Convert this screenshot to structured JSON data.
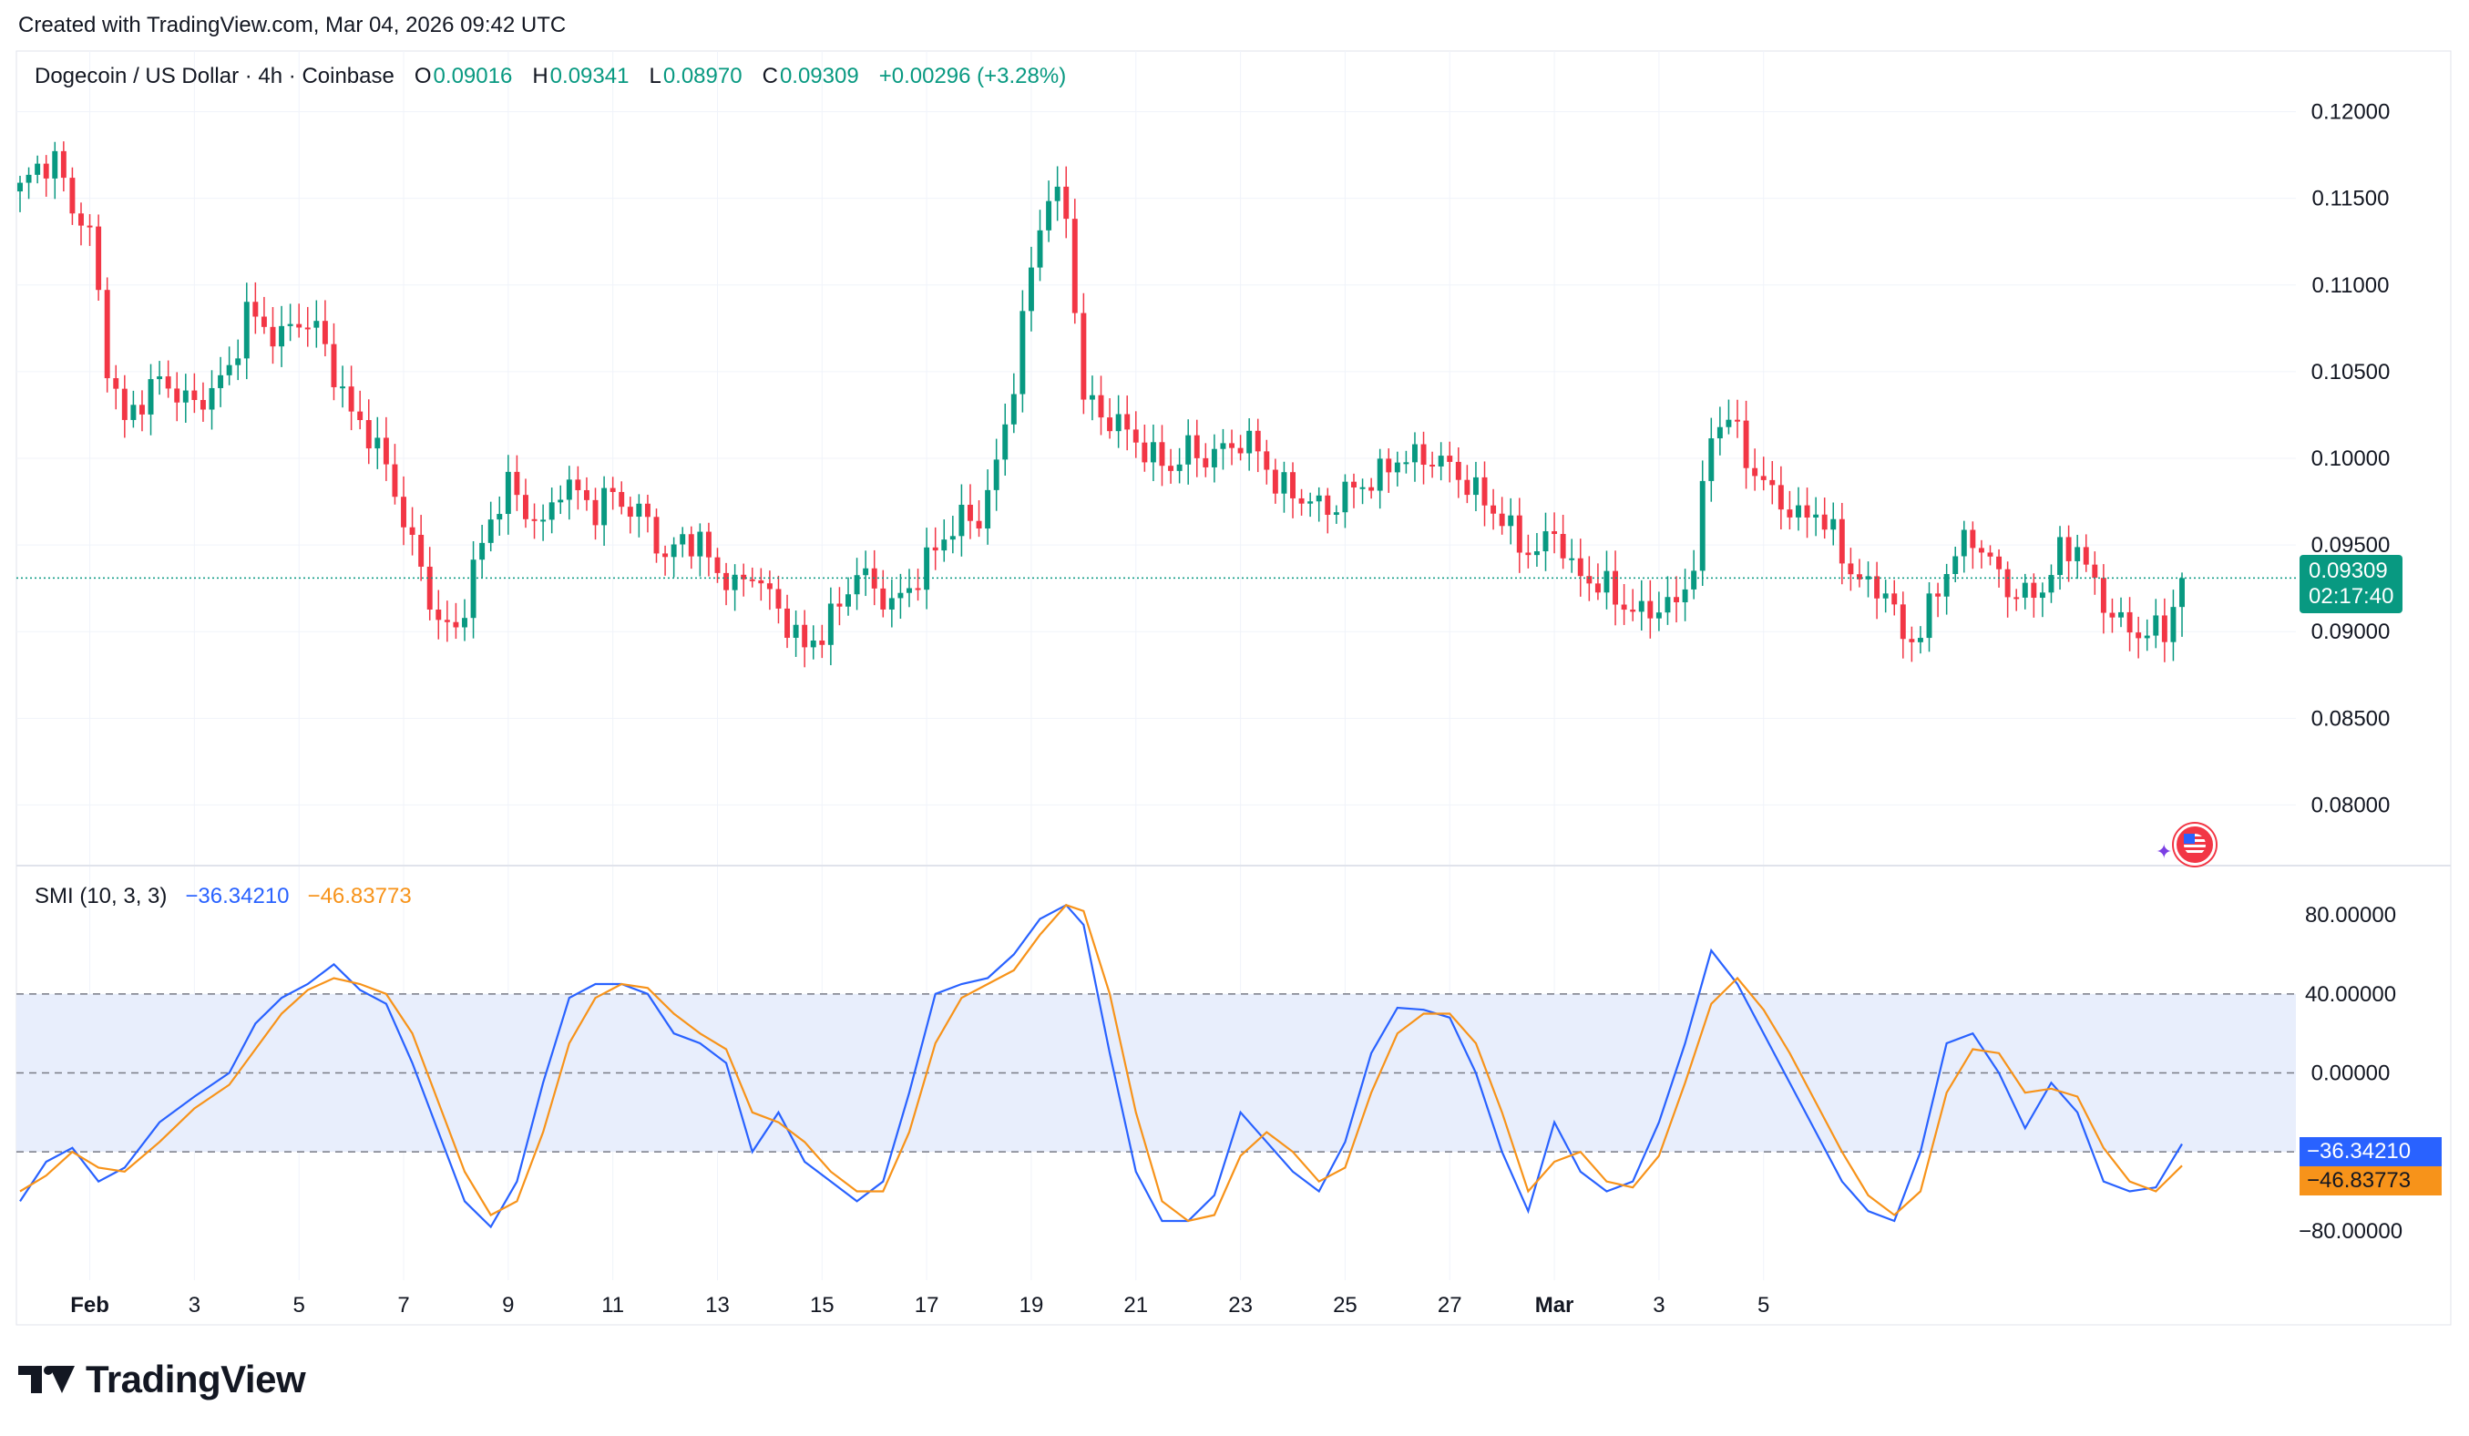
{
  "header": {
    "created_text": "Created with TradingView.com, Mar 04, 2026 09:42 UTC"
  },
  "legend": {
    "symbol": "Dogecoin / US Dollar · 4h · Coinbase",
    "o_label": "O",
    "o_value": "0.09016",
    "h_label": "H",
    "h_value": "0.09341",
    "l_label": "L",
    "l_value": "0.08970",
    "c_label": "C",
    "c_value": "0.09309",
    "change": "+0.00296 (+3.28%)"
  },
  "price_tag": {
    "price": "0.09309",
    "countdown": "02:17:40",
    "color": "#089981"
  },
  "smi_legend": {
    "name": "SMI (10, 3, 3)",
    "smi_value": "−36.34210",
    "signal_value": "−46.83773"
  },
  "smi_tags": {
    "smi": "−36.34210",
    "signal": "−46.83773",
    "smi_color": "#2962ff",
    "signal_color": "#f7931a"
  },
  "brand": {
    "name": "TradingView"
  },
  "colors": {
    "up": "#089981",
    "down": "#f23645",
    "smi": "#2962ff",
    "signal": "#f7931a",
    "band": "#e8eefc"
  },
  "chart_data": [
    {
      "type": "candlestick",
      "title": "Dogecoin / US Dollar · 4h · Coinbase",
      "ylim": [
        0.0765,
        0.1235
      ],
      "y_ticks": [
        "0.12000",
        "0.11500",
        "0.11000",
        "0.10500",
        "0.10000",
        "0.09500",
        "0.09000",
        "0.08500",
        "0.08000"
      ],
      "x_ticks": [
        "Feb",
        "3",
        "5",
        "7",
        "9",
        "11",
        "13",
        "15",
        "17",
        "19",
        "21",
        "23",
        "25",
        "27",
        "Mar",
        "3",
        "5"
      ],
      "bars_per_day": 6,
      "close_path": [
        [
          0,
          0.1155
        ],
        [
          2,
          0.1168
        ],
        [
          4,
          0.1172
        ],
        [
          6,
          0.1145
        ],
        [
          8,
          0.113
        ],
        [
          10,
          0.1055
        ],
        [
          12,
          0.102
        ],
        [
          14,
          0.1035
        ],
        [
          16,
          0.1045
        ],
        [
          18,
          0.1038
        ],
        [
          20,
          0.103
        ],
        [
          22,
          0.104
        ],
        [
          24,
          0.105
        ],
        [
          26,
          0.1085
        ],
        [
          28,
          0.1075
        ],
        [
          30,
          0.107
        ],
        [
          32,
          0.108
        ],
        [
          34,
          0.1075
        ],
        [
          36,
          0.105
        ],
        [
          38,
          0.1025
        ],
        [
          40,
          0.1015
        ],
        [
          42,
          0.0995
        ],
        [
          44,
          0.0965
        ],
        [
          46,
          0.0935
        ],
        [
          48,
          0.0905
        ],
        [
          50,
          0.09
        ],
        [
          52,
          0.0935
        ],
        [
          54,
          0.0965
        ],
        [
          56,
          0.0985
        ],
        [
          58,
          0.097
        ],
        [
          60,
          0.096
        ],
        [
          62,
          0.0985
        ],
        [
          64,
          0.098
        ],
        [
          66,
          0.097
        ],
        [
          68,
          0.098
        ],
        [
          70,
          0.097
        ],
        [
          72,
          0.0965
        ],
        [
          74,
          0.094
        ],
        [
          76,
          0.0955
        ],
        [
          78,
          0.095
        ],
        [
          80,
          0.0935
        ],
        [
          82,
          0.0925
        ],
        [
          84,
          0.0935
        ],
        [
          86,
          0.092
        ],
        [
          88,
          0.0905
        ],
        [
          90,
          0.089
        ],
        [
          92,
          0.09
        ],
        [
          94,
          0.0915
        ],
        [
          96,
          0.0935
        ],
        [
          98,
          0.0925
        ],
        [
          100,
          0.0915
        ],
        [
          102,
          0.0925
        ],
        [
          104,
          0.094
        ],
        [
          106,
          0.0955
        ],
        [
          108,
          0.0965
        ],
        [
          110,
          0.0965
        ],
        [
          112,
          0.0995
        ],
        [
          114,
          0.1045
        ],
        [
          116,
          0.111
        ],
        [
          118,
          0.1155
        ],
        [
          120,
          0.114
        ],
        [
          122,
          0.1035
        ],
        [
          124,
          0.1025
        ],
        [
          126,
          0.102
        ],
        [
          128,
          0.101
        ],
        [
          130,
          0.1
        ],
        [
          132,
          0.0995
        ],
        [
          134,
          0.1005
        ],
        [
          136,
          0.1
        ],
        [
          138,
          0.1005
        ],
        [
          140,
          0.101
        ],
        [
          142,
          0.1005
        ],
        [
          144,
          0.0985
        ],
        [
          146,
          0.098
        ],
        [
          148,
          0.0975
        ],
        [
          150,
          0.097
        ],
        [
          152,
          0.098
        ],
        [
          154,
          0.0985
        ],
        [
          156,
          0.099
        ],
        [
          158,
          0.1
        ],
        [
          160,
          0.1
        ],
        [
          162,
          0.1
        ],
        [
          164,
          0.0995
        ],
        [
          166,
          0.0985
        ],
        [
          168,
          0.0975
        ],
        [
          170,
          0.0965
        ],
        [
          172,
          0.095
        ],
        [
          174,
          0.0945
        ],
        [
          176,
          0.096
        ],
        [
          178,
          0.0935
        ],
        [
          180,
          0.093
        ],
        [
          182,
          0.0925
        ],
        [
          184,
          0.0915
        ],
        [
          186,
          0.091
        ],
        [
          188,
          0.0915
        ],
        [
          190,
          0.0915
        ],
        [
          192,
          0.094
        ],
        [
          194,
          0.1015
        ],
        [
          196,
          0.1025
        ],
        [
          198,
          0.1
        ],
        [
          200,
          0.0985
        ],
        [
          202,
          0.0975
        ],
        [
          204,
          0.0965
        ],
        [
          206,
          0.097
        ],
        [
          208,
          0.0955
        ],
        [
          210,
          0.0935
        ],
        [
          212,
          0.0925
        ],
        [
          214,
          0.0925
        ],
        [
          216,
          0.0895
        ],
        [
          218,
          0.09
        ],
        [
          220,
          0.0925
        ],
        [
          222,
          0.0945
        ],
        [
          224,
          0.0955
        ],
        [
          226,
          0.094
        ],
        [
          228,
          0.0925
        ],
        [
          230,
          0.092
        ],
        [
          232,
          0.0925
        ],
        [
          234,
          0.0945
        ],
        [
          236,
          0.095
        ],
        [
          238,
          0.0925
        ],
        [
          240,
          0.091
        ],
        [
          242,
          0.09
        ],
        [
          244,
          0.09
        ],
        [
          246,
          0.09
        ],
        [
          248,
          0.0931
        ]
      ]
    },
    {
      "type": "line",
      "title": "SMI (10, 3, 3)",
      "ylim": [
        -105,
        105
      ],
      "y_ticks": [
        "80.00000",
        "40.00000",
        "0.00000",
        "−80.00000"
      ],
      "bands": [
        40,
        0,
        -40
      ],
      "series": [
        {
          "name": "",
          "color": "#2962ff",
          "values": [
            [
              0,
              -65
            ],
            [
              3,
              -45
            ],
            [
              6,
              -38
            ],
            [
              9,
              -55
            ],
            [
              12,
              -48
            ],
            [
              16,
              -25
            ],
            [
              20,
              -12
            ],
            [
              24,
              0
            ],
            [
              27,
              25
            ],
            [
              30,
              38
            ],
            [
              33,
              45
            ],
            [
              36,
              55
            ],
            [
              39,
              42
            ],
            [
              42,
              35
            ],
            [
              45,
              5
            ],
            [
              48,
              -30
            ],
            [
              51,
              -65
            ],
            [
              54,
              -78
            ],
            [
              57,
              -55
            ],
            [
              60,
              -5
            ],
            [
              63,
              38
            ],
            [
              66,
              45
            ],
            [
              69,
              45
            ],
            [
              72,
              40
            ],
            [
              75,
              20
            ],
            [
              78,
              15
            ],
            [
              81,
              5
            ],
            [
              84,
              -40
            ],
            [
              87,
              -20
            ],
            [
              90,
              -45
            ],
            [
              93,
              -55
            ],
            [
              96,
              -65
            ],
            [
              99,
              -55
            ],
            [
              102,
              -10
            ],
            [
              105,
              40
            ],
            [
              108,
              45
            ],
            [
              111,
              48
            ],
            [
              114,
              60
            ],
            [
              117,
              78
            ],
            [
              120,
              85
            ],
            [
              122,
              75
            ],
            [
              125,
              10
            ],
            [
              128,
              -50
            ],
            [
              131,
              -75
            ],
            [
              134,
              -75
            ],
            [
              137,
              -62
            ],
            [
              140,
              -20
            ],
            [
              143,
              -35
            ],
            [
              146,
              -50
            ],
            [
              149,
              -60
            ],
            [
              152,
              -35
            ],
            [
              155,
              10
            ],
            [
              158,
              33
            ],
            [
              161,
              32
            ],
            [
              164,
              28
            ],
            [
              167,
              0
            ],
            [
              170,
              -40
            ],
            [
              173,
              -70
            ],
            [
              176,
              -25
            ],
            [
              179,
              -50
            ],
            [
              182,
              -60
            ],
            [
              185,
              -55
            ],
            [
              188,
              -25
            ],
            [
              191,
              15
            ],
            [
              194,
              62
            ],
            [
              197,
              45
            ],
            [
              200,
              20
            ],
            [
              203,
              -5
            ],
            [
              206,
              -30
            ],
            [
              209,
              -55
            ],
            [
              212,
              -70
            ],
            [
              215,
              -75
            ],
            [
              218,
              -40
            ],
            [
              221,
              15
            ],
            [
              224,
              20
            ],
            [
              227,
              0
            ],
            [
              230,
              -28
            ],
            [
              233,
              -5
            ],
            [
              236,
              -20
            ],
            [
              239,
              -55
            ],
            [
              242,
              -60
            ],
            [
              245,
              -58
            ],
            [
              248,
              -36
            ]
          ]
        },
        {
          "name": "",
          "color": "#f7931a",
          "values": [
            [
              0,
              -60
            ],
            [
              3,
              -52
            ],
            [
              6,
              -40
            ],
            [
              9,
              -48
            ],
            [
              12,
              -50
            ],
            [
              16,
              -35
            ],
            [
              20,
              -18
            ],
            [
              24,
              -6
            ],
            [
              27,
              12
            ],
            [
              30,
              30
            ],
            [
              33,
              42
            ],
            [
              36,
              48
            ],
            [
              39,
              45
            ],
            [
              42,
              40
            ],
            [
              45,
              20
            ],
            [
              48,
              -15
            ],
            [
              51,
              -50
            ],
            [
              54,
              -72
            ],
            [
              57,
              -65
            ],
            [
              60,
              -30
            ],
            [
              63,
              15
            ],
            [
              66,
              38
            ],
            [
              69,
              45
            ],
            [
              72,
              43
            ],
            [
              75,
              30
            ],
            [
              78,
              20
            ],
            [
              81,
              12
            ],
            [
              84,
              -20
            ],
            [
              87,
              -25
            ],
            [
              90,
              -35
            ],
            [
              93,
              -50
            ],
            [
              96,
              -60
            ],
            [
              99,
              -60
            ],
            [
              102,
              -30
            ],
            [
              105,
              15
            ],
            [
              108,
              38
            ],
            [
              111,
              45
            ],
            [
              114,
              52
            ],
            [
              117,
              70
            ],
            [
              120,
              85
            ],
            [
              122,
              82
            ],
            [
              125,
              40
            ],
            [
              128,
              -20
            ],
            [
              131,
              -65
            ],
            [
              134,
              -75
            ],
            [
              137,
              -72
            ],
            [
              140,
              -42
            ],
            [
              143,
              -30
            ],
            [
              146,
              -40
            ],
            [
              149,
              -55
            ],
            [
              152,
              -48
            ],
            [
              155,
              -10
            ],
            [
              158,
              20
            ],
            [
              161,
              30
            ],
            [
              164,
              30
            ],
            [
              167,
              15
            ],
            [
              170,
              -20
            ],
            [
              173,
              -60
            ],
            [
              176,
              -45
            ],
            [
              179,
              -40
            ],
            [
              182,
              -55
            ],
            [
              185,
              -58
            ],
            [
              188,
              -42
            ],
            [
              191,
              -5
            ],
            [
              194,
              35
            ],
            [
              197,
              48
            ],
            [
              200,
              32
            ],
            [
              203,
              10
            ],
            [
              206,
              -15
            ],
            [
              209,
              -40
            ],
            [
              212,
              -62
            ],
            [
              215,
              -72
            ],
            [
              218,
              -60
            ],
            [
              221,
              -10
            ],
            [
              224,
              12
            ],
            [
              227,
              10
            ],
            [
              230,
              -10
            ],
            [
              233,
              -8
            ],
            [
              236,
              -12
            ],
            [
              239,
              -38
            ],
            [
              242,
              -55
            ],
            [
              245,
              -60
            ],
            [
              248,
              -47
            ]
          ]
        }
      ]
    }
  ]
}
